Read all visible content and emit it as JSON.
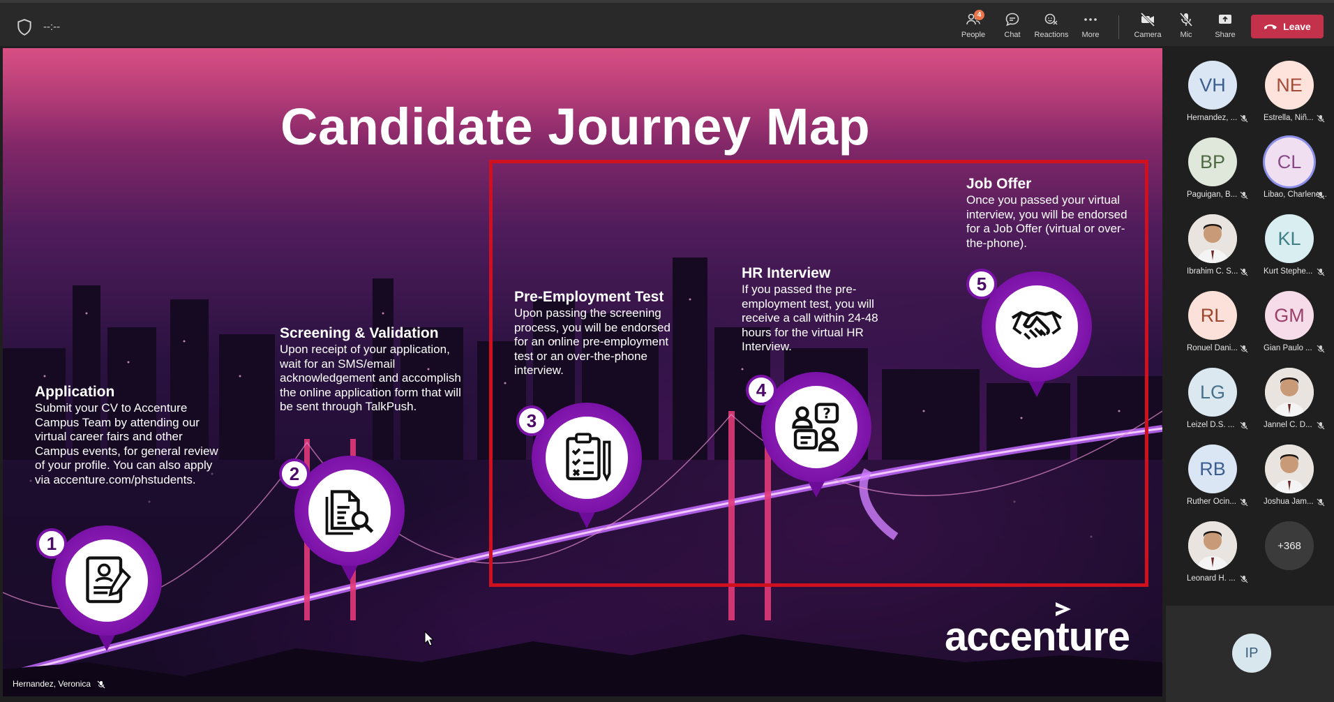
{
  "toolbar": {
    "timer": "--:--",
    "people": {
      "label": "People",
      "badge": "4"
    },
    "chat": {
      "label": "Chat"
    },
    "reactions": {
      "label": "Reactions"
    },
    "more": {
      "label": "More"
    },
    "camera": {
      "label": "Camera"
    },
    "mic": {
      "label": "Mic"
    },
    "share": {
      "label": "Share"
    },
    "leave": {
      "label": "Leave",
      "color": "#c4314b"
    }
  },
  "slide": {
    "title": "Candidate Journey Map",
    "steps": [
      {
        "number": "1",
        "heading": "Application",
        "body": "Submit your CV to Accenture Campus Team by attending our virtual career fairs and other Campus events, for general review of your profile. You can also apply via accenture.com/phstudents.",
        "icon": "resume-icon"
      },
      {
        "number": "2",
        "heading": "Screening & Validation",
        "body": "Upon receipt of your application, wait for an SMS/email acknowledgement and accomplish the online application form that will be sent through TalkPush.",
        "icon": "document-search-icon"
      },
      {
        "number": "3",
        "heading": "Pre-Employment Test",
        "body": "Upon passing the screening process, you will be endorsed for an online pre-employment test or an over-the-phone interview.",
        "icon": "clipboard-checklist-icon"
      },
      {
        "number": "4",
        "heading": "HR Interview",
        "body": "If you passed the pre-employment test, you will receive a call within 24-48 hours for the virtual HR Interview.",
        "icon": "interview-icon"
      },
      {
        "number": "5",
        "heading": "Job Offer",
        "body": "Once you passed your virtual interview, you will be endorsed for a Job Offer (virtual or over-the-phone).",
        "icon": "handshake-icon"
      }
    ],
    "brand": "accenture",
    "accent_color": "#7b12a8",
    "frame_color": "#d0101e",
    "presenter": "Hernandez, Veronica"
  },
  "participants": [
    {
      "initials": "VH",
      "name": "Hernandez, ...",
      "bg": "#dbe6f4",
      "fg": "#3c5f8f"
    },
    {
      "initials": "NE",
      "name": "Estrella, Niñ...",
      "bg": "#fde3dc",
      "fg": "#a74a37"
    },
    {
      "initials": "BP",
      "name": "Paguigan, B...",
      "bg": "#e0e8dc",
      "fg": "#4e6b44"
    },
    {
      "initials": "CL",
      "name": "Libao, Charlene...",
      "bg": "#f0dff0",
      "fg": "#8a4b8a"
    },
    {
      "initials": "",
      "name": "Ibrahim C. S...",
      "photo": true
    },
    {
      "initials": "KL",
      "name": "Kurt Stephe...",
      "bg": "#d9eef0",
      "fg": "#3e7f86"
    },
    {
      "initials": "RL",
      "name": "Ronuel Dani...",
      "bg": "#fbe1d9",
      "fg": "#a0452d"
    },
    {
      "initials": "GM",
      "name": "Gian Paulo ...",
      "bg": "#f6dbe8",
      "fg": "#9a3f6a"
    },
    {
      "initials": "LG",
      "name": "Leizel D.S. ...",
      "bg": "#dbe8f0",
      "fg": "#47708a"
    },
    {
      "initials": "",
      "name": "Jannel C. D...",
      "photo": true
    },
    {
      "initials": "RB",
      "name": "Ruther Ocin...",
      "bg": "#dbe6f4",
      "fg": "#3c5f8f"
    },
    {
      "initials": "",
      "name": "Joshua Jam...",
      "photo": true
    },
    {
      "initials": "",
      "name": "Leonard H. ...",
      "photo": true
    },
    {
      "initials": "+368",
      "name": "",
      "more": true
    }
  ],
  "self_view": {
    "initials": "IP"
  }
}
